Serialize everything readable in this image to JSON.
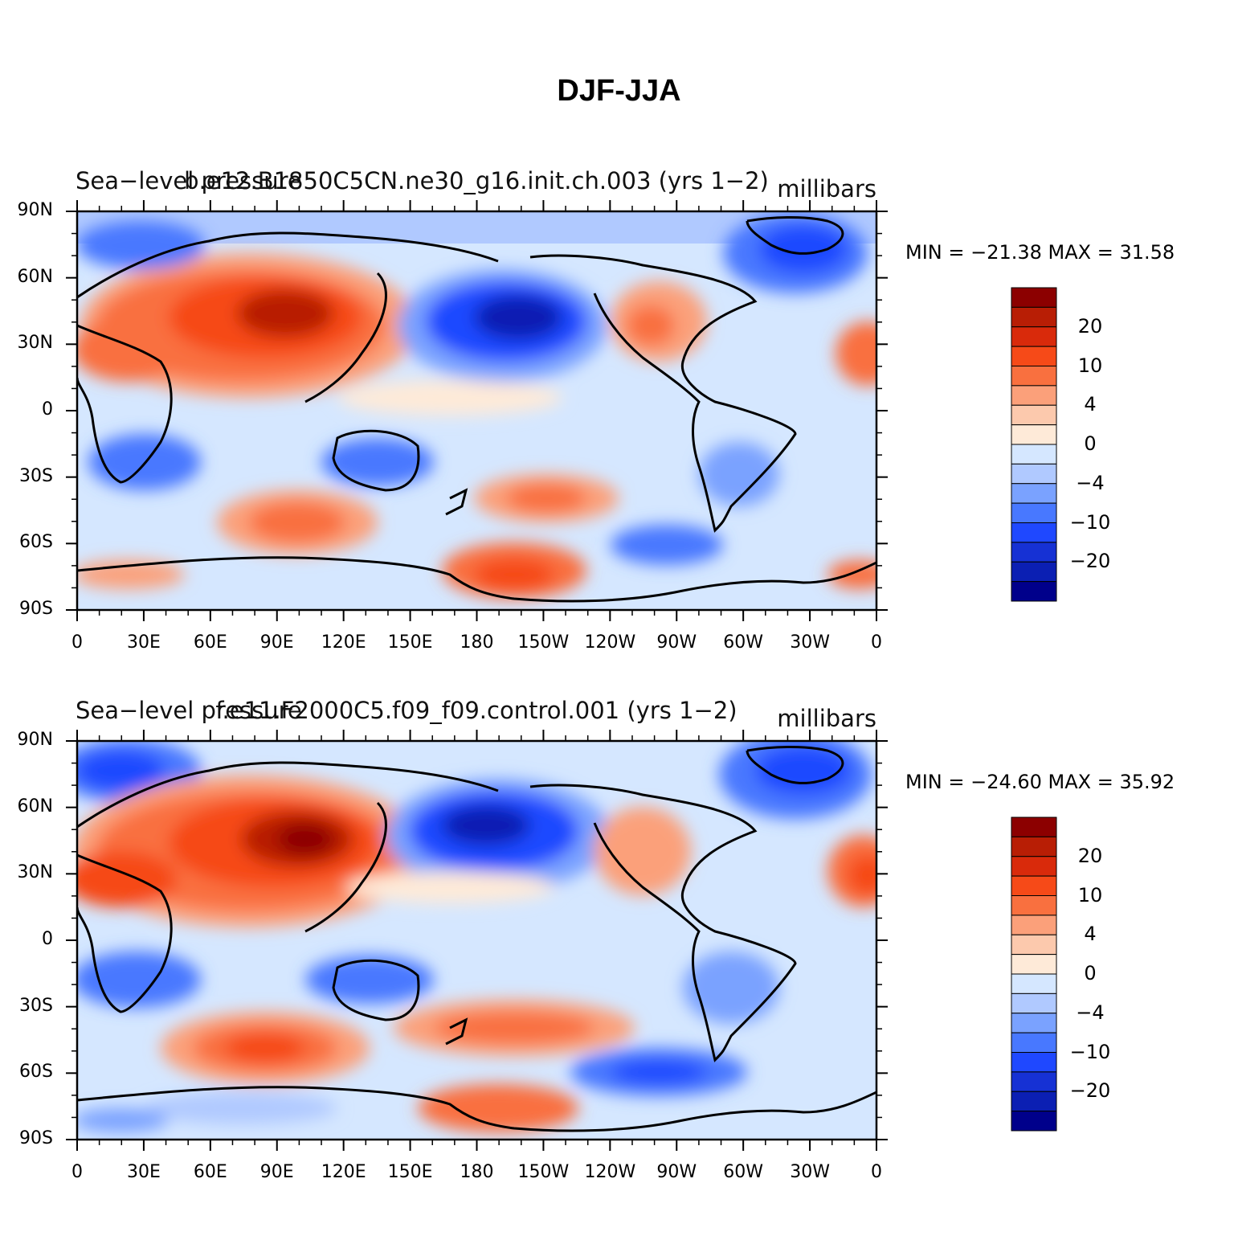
{
  "figure": {
    "title": "DJF-JJA",
    "colors": [
      "#00008b",
      "#0b1fb3",
      "#1631d4",
      "#1f48ff",
      "#4878ff",
      "#7aa2ff",
      "#b0c9ff",
      "#d5e7ff",
      "#feead8",
      "#fcc9ad",
      "#fba07a",
      "#f9703f",
      "#f64a18",
      "#d92a0b",
      "#b81e05",
      "#8c0000"
    ],
    "colorbar_labels": [
      "20",
      "10",
      "4",
      "0",
      "−4",
      "−10",
      "−20"
    ],
    "lat_labels": [
      "90N",
      "60N",
      "30N",
      "0",
      "30S",
      "60S",
      "90S"
    ],
    "lon_labels": [
      "0",
      "30E",
      "60E",
      "90E",
      "120E",
      "150E",
      "180",
      "150W",
      "120W",
      "90W",
      "60W",
      "30W",
      "0"
    ]
  },
  "panels": [
    {
      "left_title": "Sea−level pressure",
      "center_title": "b.e12.B1850C5CN.ne30_g16.init.ch.003 (yrs 1−2)",
      "units": "millibars",
      "minmax": "MIN = −21.38  MAX =   31.58",
      "icon": "contour-map-icon"
    },
    {
      "left_title": "Sea−level pressure",
      "center_title": "f.e11.F2000C5.f09_f09.control.001 (yrs 1−2)",
      "units": "millibars",
      "minmax": "MIN = −24.60  MAX =   35.92",
      "icon": "contour-map-icon"
    }
  ]
}
